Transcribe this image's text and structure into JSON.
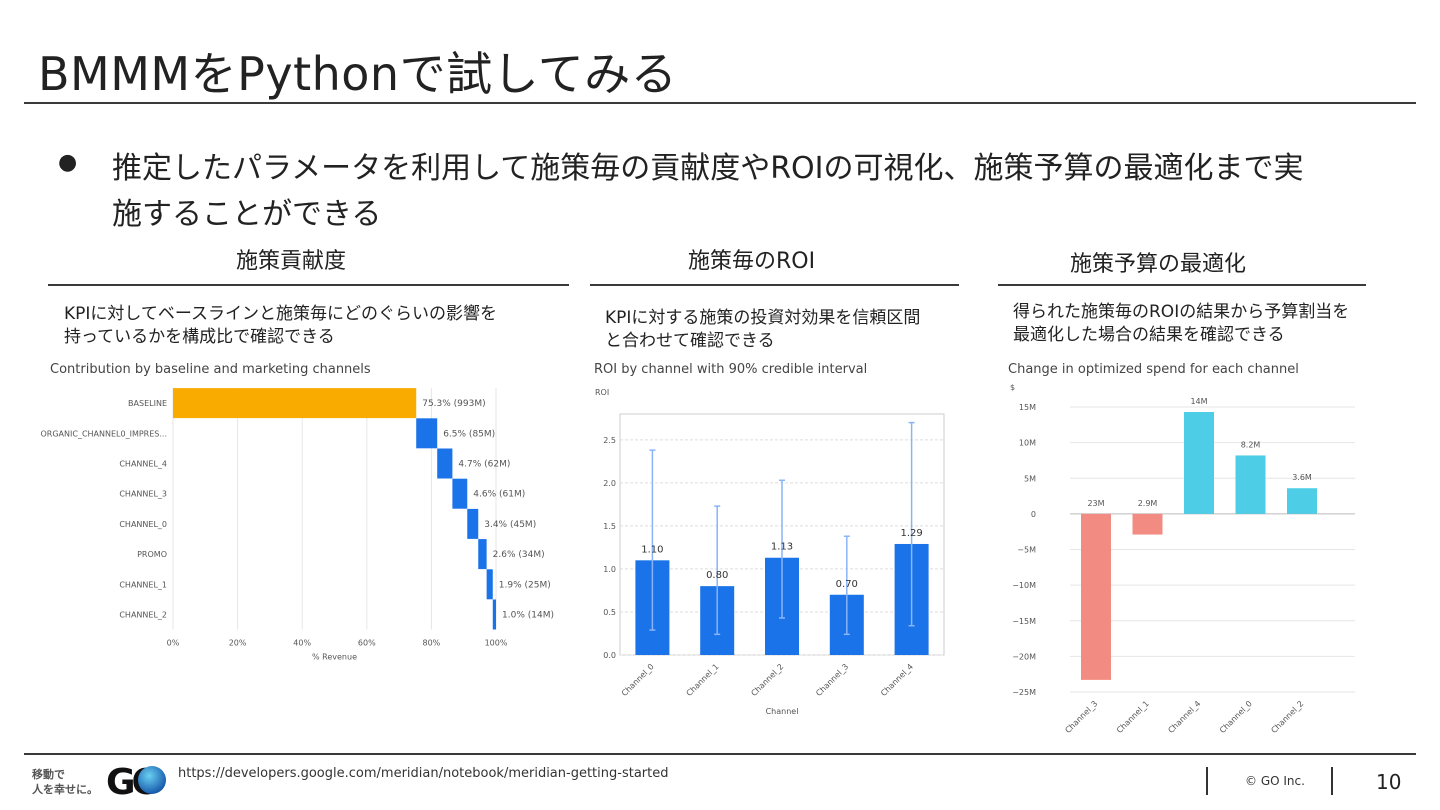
{
  "slide": {
    "title": "BMMMをPythonで試してみる",
    "bullet_line1": "推定したパラメータを利用して施策毎の貢献度やROIの可視化、施策予算の最適化まで実",
    "bullet_line2": "施することができる",
    "page_number": "10"
  },
  "sections": [
    {
      "heading": "施策貢献度",
      "desc_line1": "KPIに対してベースラインと施策毎にどのぐらいの影響を",
      "desc_line2": "持っているかを構成比で確認できる",
      "chart_title": "Contribution by baseline and marketing channels"
    },
    {
      "heading": "施策毎のROI",
      "desc_line1": "KPIに対する施策の投資対効果を信頼区間",
      "desc_line2": "と合わせて確認できる",
      "chart_title": "ROI by channel with 90% credible interval"
    },
    {
      "heading": "施策予算の最適化",
      "desc_line1": "得られた施策毎のROIの結果から予算割当を",
      "desc_line2": "最適化した場合の結果を確認できる",
      "chart_title": "Change in optimized spend for each channel"
    }
  ],
  "chart_data": [
    {
      "type": "bar",
      "orientation": "horizontal-waterfall",
      "title": "Contribution by baseline and marketing channels",
      "xlabel": "% Revenue",
      "xlim": [
        0,
        100
      ],
      "xticks": [
        "0%",
        "20%",
        "40%",
        "60%",
        "80%",
        "100%"
      ],
      "categories": [
        "BASELINE",
        "ORGANIC_CHANNEL0_IMPRES...",
        "CHANNEL_4",
        "CHANNEL_3",
        "CHANNEL_0",
        "PROMO",
        "CHANNEL_1",
        "CHANNEL_2"
      ],
      "values": [
        75.3,
        6.5,
        4.7,
        4.6,
        3.4,
        2.6,
        1.9,
        1.0
      ],
      "labels": [
        "75.3% (993M)",
        "6.5% (85M)",
        "4.7% (62M)",
        "4.6% (61M)",
        "3.4% (45M)",
        "2.6% (34M)",
        "1.9% (25M)",
        "1.0% (14M)"
      ],
      "colors": {
        "baseline": "#f9ab00",
        "channel": "#1a73e8"
      }
    },
    {
      "type": "bar",
      "title": "ROI by channel with 90% credible interval",
      "ylabel": "ROI",
      "xlabel": "Channel",
      "ylim": [
        0,
        2.8
      ],
      "yticks": [
        "0.0",
        "0.5",
        "1.0",
        "1.5",
        "2.0",
        "2.5"
      ],
      "categories": [
        "Channel_0",
        "Channel_1",
        "Channel_2",
        "Channel_3",
        "Channel_4"
      ],
      "values": [
        1.1,
        0.8,
        1.13,
        0.7,
        1.29
      ],
      "labels": [
        "1.10",
        "0.80",
        "1.13",
        "0.70",
        "1.29"
      ],
      "ci_low": [
        0.29,
        0.24,
        0.43,
        0.24,
        0.34
      ],
      "ci_high": [
        2.38,
        1.73,
        2.03,
        1.38,
        2.7
      ],
      "colors": {
        "bar": "#1a73e8",
        "interval": "#8ab4f8"
      }
    },
    {
      "type": "bar",
      "title": "Change in optimized spend for each channel",
      "ylabel": "$",
      "ylim": [
        -25,
        15
      ],
      "yticks": [
        "15M",
        "10M",
        "5M",
        "0",
        "−5M",
        "−10M",
        "−15M",
        "−20M",
        "−25M"
      ],
      "categories": [
        "Channel_3",
        "Channel_1",
        "Channel_4",
        "Channel_0",
        "Channel_2"
      ],
      "values": [
        -23.3,
        -2.9,
        14.3,
        8.2,
        3.6
      ],
      "labels": [
        "23M",
        "2.9M",
        "14M",
        "8.2M",
        "3.6M"
      ],
      "colors": {
        "negative": "#f28b82",
        "positive": "#4ecde6"
      }
    }
  ],
  "footer": {
    "logo_line1": "移動で",
    "logo_line2": "人を幸せに。",
    "logo_mark": "GO",
    "source_url": "https://developers.google.com/meridian/notebook/meridian-getting-started",
    "copyright": "© GO Inc."
  }
}
